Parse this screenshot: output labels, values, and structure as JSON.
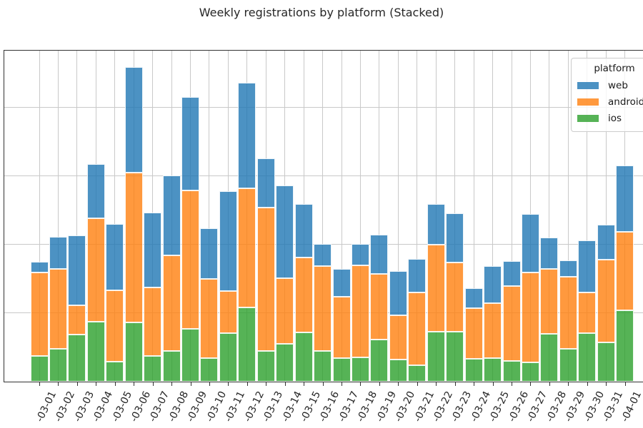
{
  "title": "Weekly registrations by platform (Stacked)",
  "legend": {
    "title": "platform",
    "entries": [
      {
        "label": "web",
        "color": "rgba(31,119,180,0.8)",
        "color_hex": "#4c92c3"
      },
      {
        "label": "android",
        "color": "rgba(255,127,14,0.8)",
        "color_hex": "#ff993e"
      },
      {
        "label": "ios",
        "color": "rgba(44,160,44,0.8)",
        "color_hex": "#56b356"
      }
    ]
  },
  "chart_data": {
    "type": "bar",
    "stacked": true,
    "stack_order": "bottom-to-top",
    "title": "Weekly registrations by platform (Stacked)",
    "xlabel": "",
    "ylabel": "",
    "categories": [
      "-03-01",
      "-03-02",
      "-03-03",
      "-03-04",
      "-03-05",
      "-03-06",
      "-03-07",
      "-03-08",
      "-03-09",
      "-03-10",
      "-03-11",
      "-03-12",
      "-03-13",
      "-03-14",
      "-03-15",
      "-03-16",
      "-03-17",
      "-03-18",
      "-03-19",
      "-03-20",
      "-03-21",
      "-03-22",
      "-03-23",
      "-03-24",
      "-03-25",
      "-03-26",
      "-03-27",
      "-03-28",
      "-03-29",
      "-03-30",
      "-03-31",
      "-04-01"
    ],
    "series": [
      {
        "name": "ios",
        "color": "rgba(44,160,44,0.8)",
        "color_hex": "#56b356",
        "values": [
          37,
          48,
          69,
          87,
          29,
          86,
          38,
          45,
          77,
          34,
          71,
          108,
          45,
          55,
          72,
          45,
          34,
          35,
          61,
          32,
          24,
          73,
          73,
          33,
          34,
          30,
          28,
          70,
          48,
          71,
          57,
          104
        ]
      },
      {
        "name": "android",
        "color": "rgba(255,127,14,0.8)",
        "color_hex": "#ff993e",
        "values": [
          122,
          117,
          43,
          152,
          104,
          219,
          100,
          139,
          202,
          116,
          61,
          174,
          209,
          96,
          109,
          124,
          90,
          135,
          96,
          65,
          106,
          127,
          101,
          74,
          81,
          110,
          131,
          95,
          105,
          59,
          121,
          115
        ]
      },
      {
        "name": "web",
        "color": "rgba(31,119,180,0.8)",
        "color_hex": "#4c92c3",
        "values": [
          16,
          47,
          102,
          79,
          97,
          154,
          109,
          117,
          137,
          74,
          146,
          154,
          72,
          136,
          78,
          32,
          41,
          31,
          58,
          65,
          49,
          59,
          72,
          30,
          54,
          36,
          86,
          45,
          24,
          76,
          51,
          97
        ]
      }
    ],
    "ylim": [
      0,
      485
    ],
    "y_gridline_step": 100,
    "y_tick_labels_visible": false,
    "grid": true,
    "legend_position": "upper-right",
    "x_tick_rotation_deg": 64
  }
}
